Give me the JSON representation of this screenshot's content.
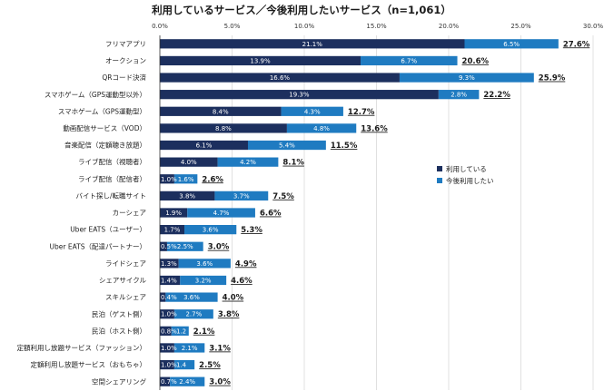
{
  "chart_data": {
    "type": "bar",
    "orientation": "horizontal",
    "stacked": true,
    "title": "利用しているサービス／今後利用したいサービス（n=1,061）",
    "xlim": [
      0,
      30
    ],
    "xticks": [
      "0.0%",
      "5.0%",
      "10.0%",
      "15.0%",
      "20.0%",
      "25.0%",
      "30.0%"
    ],
    "categories": [
      "フリマアプリ",
      "オークション",
      "QRコード決済",
      "スマホゲーム（GPS運動型以外）",
      "スマホゲーム（GPS運動型）",
      "動画配信サービス（VOD）",
      "音楽配信（定額聴き放題）",
      "ライブ配信（視聴者）",
      "ライブ配信（配信者）",
      "バイト探し/転職サイト",
      "カーシェア",
      "Uber EATS（ユーザー）",
      "Uber EATS（配達パートナー）",
      "ライドシェア",
      "シェアサイクル",
      "スキルシェア",
      "民泊（ゲスト側）",
      "民泊（ホスト側）",
      "定額利用し放題サービス（ファッション）",
      "定額利用し放題サービス（おもちゃ）",
      "空間シェアリング"
    ],
    "series": [
      {
        "name": "利用している",
        "color": "#1c2f5e",
        "values": [
          21.1,
          13.9,
          16.6,
          19.3,
          8.4,
          8.8,
          6.1,
          4.0,
          1.0,
          3.8,
          1.9,
          1.7,
          0.5,
          1.3,
          1.4,
          0.4,
          1.0,
          0.8,
          1.0,
          1.0,
          0.7
        ],
        "labels": [
          "21.1%",
          "13.9%",
          "16.6%",
          "19.3%",
          "8.4%",
          "8.8%",
          "6.1%",
          "4.0%",
          "1.0%",
          "3.8%",
          "1.9%",
          "1.7%",
          "0.5%",
          "1.3%",
          "1.4%",
          "0.4%",
          "1.0%",
          "0.8%",
          "1.0%",
          "1.0%",
          "0.7%"
        ]
      },
      {
        "name": "今後利用したい",
        "color": "#1f7bc1",
        "values": [
          6.5,
          6.7,
          9.3,
          2.8,
          4.3,
          4.8,
          5.4,
          4.2,
          1.6,
          3.7,
          4.7,
          3.6,
          2.5,
          3.6,
          3.2,
          3.6,
          2.7,
          1.2,
          2.1,
          1.4,
          2.4
        ],
        "labels": [
          "6.5%",
          "6.7%",
          "9.3%",
          "2.8%",
          "4.3%",
          "4.8%",
          "5.4%",
          "4.2%",
          "1.6%",
          "3.7%",
          "4.7%",
          "3.6%",
          "2.5%",
          "3.6%",
          "3.2%",
          "3.6%",
          "2.7%",
          "1.2",
          "2.1%",
          "1.4",
          "2.4%"
        ]
      }
    ],
    "totals": [
      "27.6%",
      "20.6%",
      "25.9%",
      "22.2%",
      "12.7%",
      "13.6%",
      "11.5%",
      "8.1%",
      "2.6%",
      "7.5%",
      "6.6%",
      "5.3%",
      "3.0%",
      "4.9%",
      "4.6%",
      "4.0%",
      "3.8%",
      "2.1%",
      "3.1%",
      "2.5%",
      "3.0%"
    ],
    "legend_position": "right-middle",
    "grid": true
  }
}
